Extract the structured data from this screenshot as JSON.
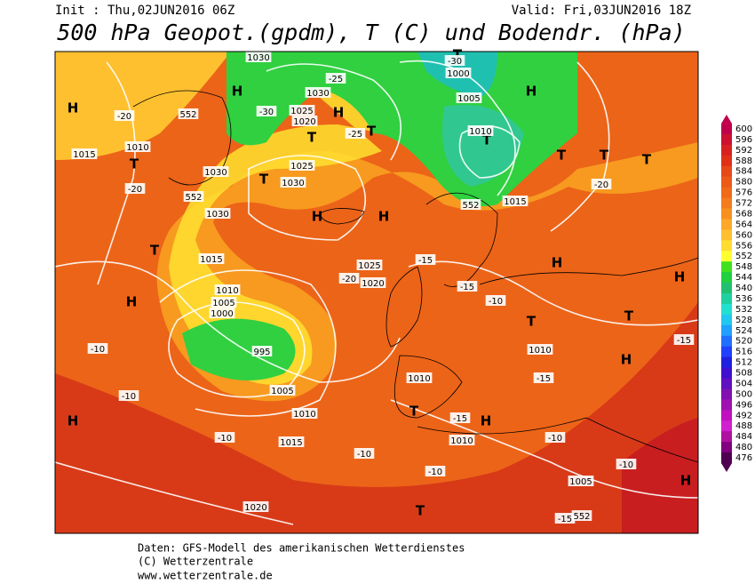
{
  "header": {
    "init": "Init : Thu,02JUN2016 06Z",
    "valid": "Valid: Fri,03JUN2016 18Z",
    "title": "500 hPa Geopot.(gpdm), T (C) und Bodendr. (hPa)"
  },
  "legend": {
    "labels": [
      "600",
      "596",
      "592",
      "588",
      "584",
      "580",
      "576",
      "572",
      "568",
      "564",
      "560",
      "556",
      "552",
      "548",
      "544",
      "540",
      "536",
      "532",
      "528",
      "524",
      "520",
      "516",
      "512",
      "508",
      "504",
      "500",
      "496",
      "492",
      "488",
      "484",
      "480",
      "476"
    ],
    "colors": [
      "#c0004a",
      "#cc1030",
      "#d82020",
      "#e03018",
      "#e84818",
      "#ec5a18",
      "#f06a18",
      "#f47c1c",
      "#f89020",
      "#fca828",
      "#ffc030",
      "#ffdc30",
      "#ffff30",
      "#40e020",
      "#20d040",
      "#20c070",
      "#20d0a0",
      "#20e0d0",
      "#20c8f0",
      "#20a0ff",
      "#2070ff",
      "#2040ff",
      "#2020e0",
      "#4010d0",
      "#6010c0",
      "#8010b0",
      "#a010b0",
      "#c010c0",
      "#d020d0",
      "#b010a0",
      "#800080",
      "#500050"
    ]
  },
  "map": {
    "labels": [
      "H",
      "H",
      "H",
      "H",
      "H",
      "H",
      "H",
      "H",
      "H",
      "H",
      "H",
      "H",
      "H",
      "T",
      "T",
      "T",
      "T",
      "T",
      "T",
      "T",
      "T",
      "T",
      "T",
      "T",
      "T",
      "T",
      "T",
      "1030",
      "1030",
      "1025",
      "1020",
      "1010",
      "1015",
      "1030",
      "1025",
      "1030",
      "1030",
      "1025",
      "1020",
      "1010",
      "1005",
      "1000",
      "995",
      "1005",
      "1010",
      "1015",
      "1015",
      "1010",
      "1010",
      "1010",
      "1020",
      "1000",
      "1005",
      "1010",
      "1015",
      "1005",
      "1010",
      "-20",
      "-20",
      "-30",
      "-25",
      "-30",
      "-25",
      "-20",
      "-15",
      "-20",
      "-15",
      "-10",
      "-10",
      "-10",
      "-10",
      "-15",
      "-15",
      "-10",
      "-10",
      "-15",
      "-10",
      "-15",
      "-10",
      "552",
      "552",
      "552",
      "552"
    ]
  },
  "footer": {
    "line1": "Daten: GFS-Modell des amerikanischen Wetterdienstes",
    "line2": "(C) Wetterzentrale",
    "line3": "www.wetterzentrale.de"
  }
}
